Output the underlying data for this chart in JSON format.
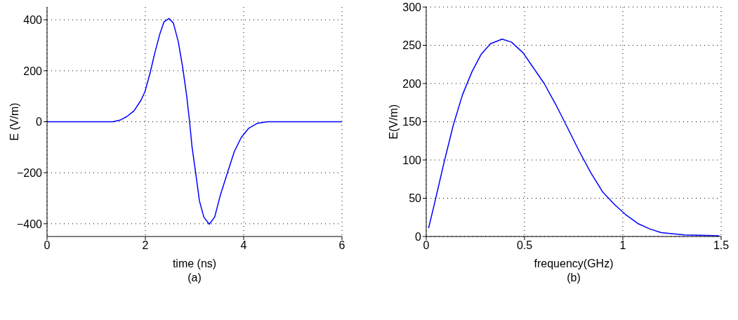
{
  "chart_data": [
    {
      "type": "line",
      "xlabel": "time (ns)",
      "ylabel": "E (V/m)",
      "annotations": [
        "(a)"
      ],
      "series": [
        {
          "color": "#0000ff",
          "x": [
            0,
            1.34,
            1.48,
            1.62,
            1.77,
            1.91,
            1.99,
            2.1,
            2.19,
            2.29,
            2.38,
            2.48,
            2.57,
            2.67,
            2.76,
            2.84,
            2.9,
            2.95,
            3.03,
            3.1,
            3.19,
            3.3,
            3.41,
            3.52,
            3.67,
            3.81,
            3.95,
            4.1,
            4.28,
            4.48,
            6
          ],
          "values": [
            0,
            0,
            6,
            20,
            43,
            84,
            117,
            194,
            268,
            341,
            392,
            405,
            387,
            314,
            213,
            103,
            0,
            -99,
            -209,
            -310,
            -374,
            -402,
            -374,
            -292,
            -200,
            -117,
            -62,
            -26,
            -6,
            0,
            0
          ]
        }
      ],
      "xlim": [
        0,
        6
      ],
      "xticks": [
        0,
        2,
        4,
        6
      ],
      "ylim": [
        -450,
        450
      ],
      "yticks": [
        {
          "value": -400,
          "label": "−400"
        },
        {
          "value": -200,
          "label": "−200"
        },
        0,
        200,
        400
      ],
      "grid": true,
      "legend": false,
      "marker": "none",
      "line_style": "solid"
    },
    {
      "type": "line",
      "xlabel": "frequency(GHz)",
      "ylabel": "E(V/m)",
      "annotations": [
        "(b)"
      ],
      "series": [
        {
          "color": "#0000ff",
          "x": [
            0.012,
            0.042,
            0.089,
            0.137,
            0.184,
            0.232,
            0.279,
            0.327,
            0.386,
            0.434,
            0.493,
            0.541,
            0.6,
            0.66,
            0.719,
            0.779,
            0.838,
            0.898,
            0.957,
            1.017,
            1.076,
            1.136,
            1.195,
            1.314,
            1.49
          ],
          "values": [
            11,
            43,
            95,
            145,
            185,
            215,
            238,
            252,
            258,
            254,
            240,
            222,
            200,
            172,
            142,
            111,
            83,
            58,
            42,
            28,
            17,
            10,
            5,
            2,
            1
          ]
        }
      ],
      "xlim": [
        0,
        1.5
      ],
      "xticks": [
        0,
        0.5,
        1,
        1.5
      ],
      "ylim": [
        0,
        300
      ],
      "yticks": [
        0,
        50,
        100,
        150,
        200,
        250,
        300
      ],
      "grid": true,
      "legend": false,
      "marker": "none",
      "line_style": "solid"
    }
  ]
}
